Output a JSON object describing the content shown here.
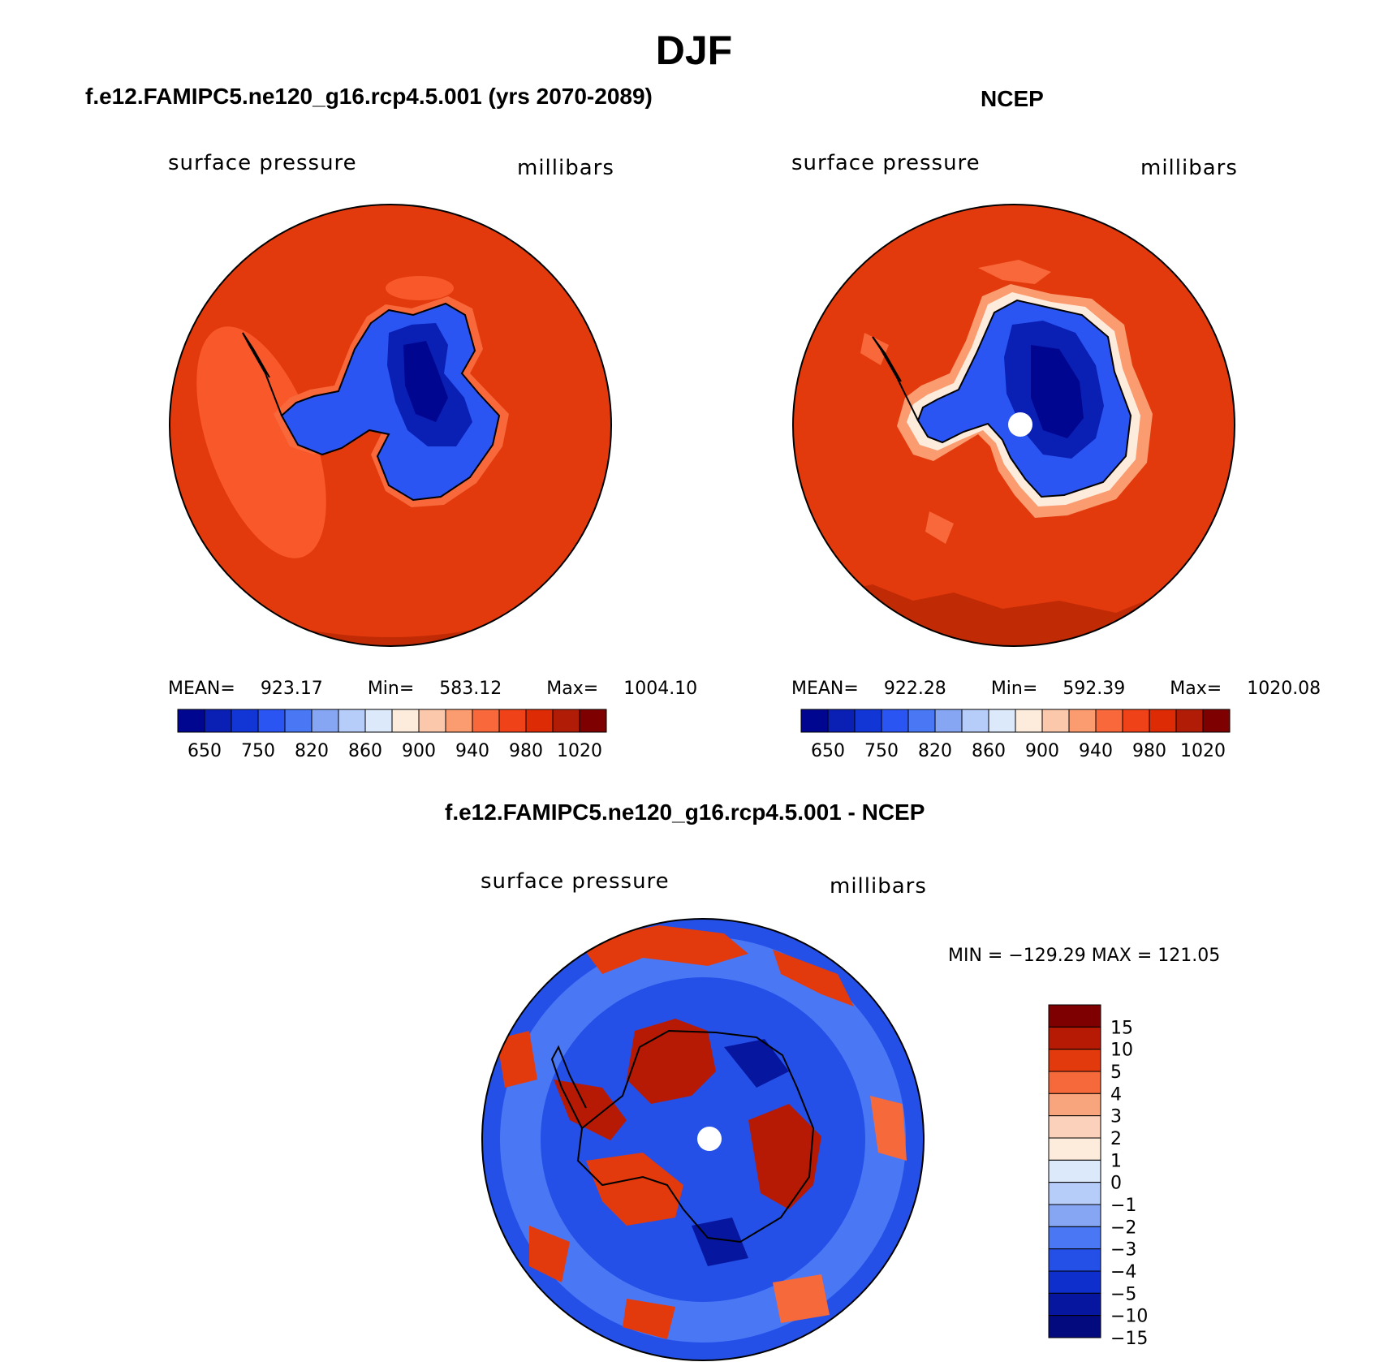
{
  "page": {
    "season": "DJF"
  },
  "panels": [
    {
      "title": "f.e12.FAMIPC5.ne120_g16.rcp4.5.001 (yrs 2070-2089)",
      "variable": "surface pressure",
      "units": "millibars",
      "stats": {
        "mean_label": "MEAN=",
        "mean": "923.17",
        "min_label": "Min=",
        "min": "583.12",
        "max_label": "Max=",
        "max": "1004.10"
      }
    },
    {
      "title": "NCEP",
      "variable": "surface pressure",
      "units": "millibars",
      "stats": {
        "mean_label": "MEAN=",
        "mean": "922.28",
        "min_label": "Min=",
        "min": "592.39",
        "max_label": "Max=",
        "max": "1020.08"
      }
    }
  ],
  "diff_panel": {
    "title": "f.e12.FAMIPC5.ne120_g16.rcp4.5.001 - NCEP",
    "variable": "surface pressure",
    "units": "millibars",
    "minmax_text": "MIN = −129.29 MAX = 121.05"
  },
  "colorbar_pressure": {
    "colors": [
      "#00068f",
      "#0a1fb3",
      "#1236d6",
      "#2a55f2",
      "#4a78f5",
      "#86a6f4",
      "#b6cdfa",
      "#dbe9fb",
      "#fdecdc",
      "#fcc8ab",
      "#fb9b70",
      "#f8683a",
      "#ef4218",
      "#dc2b05",
      "#b01c05",
      "#7e0000"
    ],
    "tick_labels": [
      "650",
      "750",
      "820",
      "860",
      "900",
      "940",
      "980",
      "1020"
    ]
  },
  "colorbar_diff": {
    "colors": [
      "#7e0000",
      "#b61a04",
      "#e23a0d",
      "#f6693a",
      "#f8a57d",
      "#fbd1bc",
      "#fdecdc",
      "#dbe9fb",
      "#b6cdfa",
      "#86a6f4",
      "#4a78f5",
      "#2450e8",
      "#0f2fcc",
      "#06169f",
      "#020a7e"
    ],
    "tick_labels": [
      "15",
      "10",
      "5",
      "4",
      "3",
      "2",
      "1",
      "0",
      "−1",
      "−2",
      "−3",
      "−4",
      "−5",
      "−10",
      "−15"
    ]
  }
}
